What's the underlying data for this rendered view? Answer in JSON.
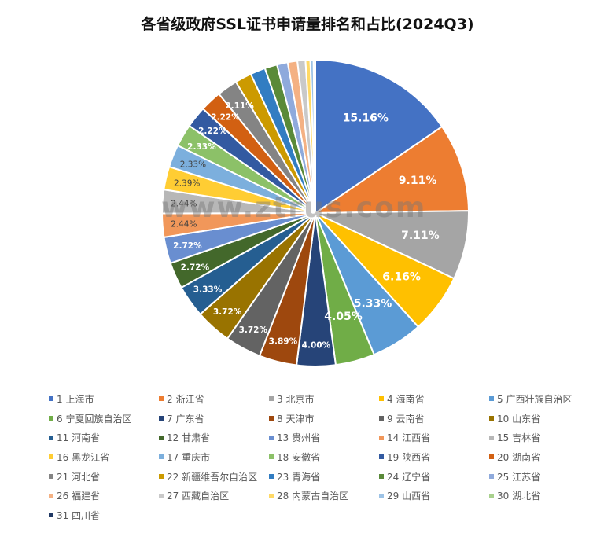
{
  "chart_data": {
    "type": "pie",
    "title": "各省级政府SSL证书申请量排名和占比(2024Q3)",
    "watermark": "www.ztrus.com",
    "legend_position": "bottom",
    "start_angle_deg": 0,
    "direction": "clockwise",
    "categories": [
      "1 上海市",
      "2 浙江省",
      "3 北京市",
      "4 海南省",
      "5 广西壮族自治区",
      "6 宁夏回族自治区",
      "7 广东省",
      "8 天津市",
      "9 云南省",
      "10 山东省",
      "11 河南省",
      "12 甘肃省",
      "13 贵州省",
      "14 江西省",
      "15 吉林省",
      "16 黑龙江省",
      "17 重庆市",
      "18 安徽省",
      "19 陕西省",
      "20 湖南省",
      "21 河北省",
      "22 新疆维吾尔自治区",
      "23 青海省",
      "24 辽宁省",
      "25 江苏省",
      "26 福建省",
      "27 西藏自治区",
      "28 内蒙古自治区",
      "29 山西省",
      "30 湖北省",
      "31 四川省"
    ],
    "values": [
      15.16,
      9.11,
      7.11,
      6.16,
      5.33,
      4.05,
      4.0,
      3.89,
      3.72,
      3.72,
      3.33,
      2.72,
      2.72,
      2.44,
      2.44,
      2.39,
      2.33,
      2.33,
      2.22,
      2.22,
      2.11,
      1.72,
      1.55,
      1.28,
      1.11,
      1.0,
      0.83,
      0.5,
      0.33,
      0.17,
      0.01
    ],
    "labels": [
      "15.16%",
      "9.11%",
      "7.11%",
      "6.16%",
      "5.33%",
      "4.05%",
      "4.00%",
      "3.89%",
      "3.72%",
      "3.72%",
      "3.33%",
      "2.72%",
      "2.72%",
      "2.44%",
      "2.44%",
      "2.39%",
      "2.33%",
      "2.33%",
      "2.22%",
      "2.22%",
      "2.11%",
      "",
      "",
      "",
      "",
      "",
      "",
      "",
      "",
      "",
      ""
    ],
    "colors": [
      "#4472C4",
      "#ED7D31",
      "#A5A5A5",
      "#FFC000",
      "#5B9BD5",
      "#70AD47",
      "#264478",
      "#9E480E",
      "#636363",
      "#997300",
      "#255E91",
      "#43682B",
      "#698ED0",
      "#F1975A",
      "#B7B7B7",
      "#FFCD33",
      "#7CAFDD",
      "#8CC168",
      "#335AA1",
      "#D26012",
      "#848484",
      "#CC9A00",
      "#327DC2",
      "#5A8A39",
      "#8FAADC",
      "#F4B183",
      "#C9C9C9",
      "#FFD966",
      "#9DC3E6",
      "#A9D18E",
      "#203864"
    ],
    "label_colors": [
      "#fff",
      "#fff",
      "#fff",
      "#fff",
      "#fff",
      "#fff",
      "#fff",
      "#fff",
      "#fff",
      "#fff",
      "#fff",
      "#fff",
      "#fff",
      "#404040",
      "#404040",
      "#404040",
      "#404040",
      "#fff",
      "#fff",
      "#fff",
      "#fff",
      "",
      "",
      "",
      "",
      "",
      "",
      "",
      "",
      "",
      ""
    ]
  }
}
